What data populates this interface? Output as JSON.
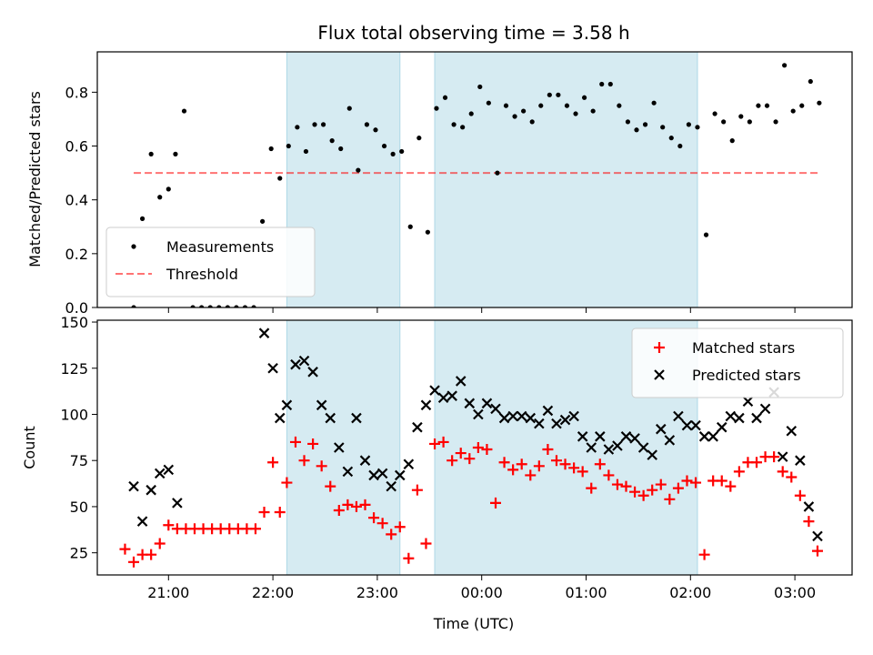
{
  "chart_data": {
    "title": "Flux total observing time = 3.58 h",
    "xlabel": "Time (UTC)",
    "x_ticks": [
      "21:00",
      "22:00",
      "23:00",
      "00:00",
      "01:00",
      "02:00",
      "03:00"
    ],
    "shaded_intervals": [
      [
        "22:08",
        "23:13"
      ],
      [
        "23:33",
        "02:04"
      ]
    ],
    "shade_color": "#add8e6",
    "panels": [
      {
        "type": "scatter",
        "ylabel": "Matched/Predicted stars",
        "ylim": [
          0,
          0.95
        ],
        "y_ticks": [
          "0.0",
          "0.2",
          "0.4",
          "0.6",
          "0.8"
        ],
        "legend_position": "lower-left",
        "threshold": {
          "label": "Threshold",
          "value": 0.5,
          "x_range": [
            "20:40",
            "03:15"
          ],
          "color": "#ff0000"
        },
        "series": [
          {
            "name": "Measurements",
            "marker": "dot",
            "color": "#000000",
            "points": [
              [
                "20:40",
                0.0
              ],
              [
                "20:45",
                0.33
              ],
              [
                "20:50",
                0.57
              ],
              [
                "20:55",
                0.41
              ],
              [
                "21:00",
                0.44
              ],
              [
                "21:04",
                0.57
              ],
              [
                "21:09",
                0.73
              ],
              [
                "21:14",
                0.0
              ],
              [
                "21:19",
                0.0
              ],
              [
                "21:24",
                0.0
              ],
              [
                "21:29",
                0.0
              ],
              [
                "21:34",
                0.0
              ],
              [
                "21:39",
                0.0
              ],
              [
                "21:44",
                0.0
              ],
              [
                "21:49",
                0.0
              ],
              [
                "21:54",
                0.32
              ],
              [
                "21:59",
                0.59
              ],
              [
                "22:04",
                0.48
              ],
              [
                "22:09",
                0.6
              ],
              [
                "22:14",
                0.67
              ],
              [
                "22:19",
                0.58
              ],
              [
                "22:24",
                0.68
              ],
              [
                "22:29",
                0.68
              ],
              [
                "22:34",
                0.62
              ],
              [
                "22:39",
                0.59
              ],
              [
                "22:44",
                0.74
              ],
              [
                "22:49",
                0.51
              ],
              [
                "22:54",
                0.68
              ],
              [
                "22:59",
                0.66
              ],
              [
                "23:04",
                0.6
              ],
              [
                "23:09",
                0.57
              ],
              [
                "23:14",
                0.58
              ],
              [
                "23:19",
                0.3
              ],
              [
                "23:24",
                0.63
              ],
              [
                "23:29",
                0.28
              ],
              [
                "23:34",
                0.74
              ],
              [
                "23:39",
                0.78
              ],
              [
                "23:44",
                0.68
              ],
              [
                "23:49",
                0.67
              ],
              [
                "23:54",
                0.72
              ],
              [
                "23:59",
                0.82
              ],
              [
                "00:04",
                0.76
              ],
              [
                "00:09",
                0.5
              ],
              [
                "00:14",
                0.75
              ],
              [
                "00:19",
                0.71
              ],
              [
                "00:24",
                0.73
              ],
              [
                "00:29",
                0.69
              ],
              [
                "00:34",
                0.75
              ],
              [
                "00:39",
                0.79
              ],
              [
                "00:44",
                0.79
              ],
              [
                "00:49",
                0.75
              ],
              [
                "00:54",
                0.72
              ],
              [
                "00:59",
                0.78
              ],
              [
                "01:04",
                0.73
              ],
              [
                "01:09",
                0.83
              ],
              [
                "01:14",
                0.83
              ],
              [
                "01:19",
                0.75
              ],
              [
                "01:24",
                0.69
              ],
              [
                "01:29",
                0.66
              ],
              [
                "01:34",
                0.68
              ],
              [
                "01:39",
                0.76
              ],
              [
                "01:44",
                0.67
              ],
              [
                "01:49",
                0.63
              ],
              [
                "01:54",
                0.6
              ],
              [
                "01:59",
                0.68
              ],
              [
                "02:04",
                0.67
              ],
              [
                "02:09",
                0.27
              ],
              [
                "02:14",
                0.72
              ],
              [
                "02:19",
                0.69
              ],
              [
                "02:24",
                0.62
              ],
              [
                "02:29",
                0.71
              ],
              [
                "02:34",
                0.69
              ],
              [
                "02:39",
                0.75
              ],
              [
                "02:44",
                0.75
              ],
              [
                "02:49",
                0.69
              ],
              [
                "02:54",
                0.9
              ],
              [
                "02:59",
                0.73
              ],
              [
                "03:04",
                0.75
              ],
              [
                "03:09",
                0.84
              ],
              [
                "03:14",
                0.76
              ]
            ]
          }
        ]
      },
      {
        "type": "scatter",
        "ylabel": "Count",
        "ylim": [
          13,
          151
        ],
        "y_ticks": [
          "25",
          "50",
          "75",
          "100",
          "125",
          "150"
        ],
        "legend_position": "upper-right",
        "series": [
          {
            "name": "Matched stars",
            "marker": "plus",
            "color": "#ff0000",
            "points": [
              [
                "20:35",
                27
              ],
              [
                "20:40",
                20
              ],
              [
                "20:45",
                24
              ],
              [
                "20:50",
                24
              ],
              [
                "20:55",
                30
              ],
              [
                "21:00",
                40
              ],
              [
                "21:05",
                38
              ],
              [
                "21:10",
                38
              ],
              [
                "21:15",
                38
              ],
              [
                "21:20",
                38
              ],
              [
                "21:25",
                38
              ],
              [
                "21:30",
                38
              ],
              [
                "21:35",
                38
              ],
              [
                "21:40",
                38
              ],
              [
                "21:45",
                38
              ],
              [
                "21:50",
                38
              ],
              [
                "21:55",
                47
              ],
              [
                "22:00",
                74
              ],
              [
                "22:04",
                47
              ],
              [
                "22:08",
                63
              ],
              [
                "22:13",
                85
              ],
              [
                "22:18",
                75
              ],
              [
                "22:23",
                84
              ],
              [
                "22:28",
                72
              ],
              [
                "22:33",
                61
              ],
              [
                "22:38",
                48
              ],
              [
                "22:43",
                51
              ],
              [
                "22:48",
                50
              ],
              [
                "22:53",
                51
              ],
              [
                "22:58",
                44
              ],
              [
                "23:03",
                41
              ],
              [
                "23:08",
                35
              ],
              [
                "23:13",
                39
              ],
              [
                "23:18",
                22
              ],
              [
                "23:23",
                59
              ],
              [
                "23:28",
                30
              ],
              [
                "23:33",
                84
              ],
              [
                "23:38",
                85
              ],
              [
                "23:43",
                75
              ],
              [
                "23:48",
                79
              ],
              [
                "23:53",
                76
              ],
              [
                "23:58",
                82
              ],
              [
                "00:03",
                81
              ],
              [
                "00:08",
                52
              ],
              [
                "00:13",
                74
              ],
              [
                "00:18",
                70
              ],
              [
                "00:23",
                73
              ],
              [
                "00:28",
                67
              ],
              [
                "00:33",
                72
              ],
              [
                "00:38",
                81
              ],
              [
                "00:43",
                75
              ],
              [
                "00:48",
                73
              ],
              [
                "00:53",
                71
              ],
              [
                "00:58",
                69
              ],
              [
                "01:03",
                60
              ],
              [
                "01:08",
                73
              ],
              [
                "01:13",
                67
              ],
              [
                "01:18",
                62
              ],
              [
                "01:23",
                61
              ],
              [
                "01:28",
                58
              ],
              [
                "01:33",
                56
              ],
              [
                "01:38",
                59
              ],
              [
                "01:43",
                62
              ],
              [
                "01:48",
                54
              ],
              [
                "01:53",
                60
              ],
              [
                "01:58",
                64
              ],
              [
                "02:03",
                63
              ],
              [
                "02:08",
                24
              ],
              [
                "02:13",
                64
              ],
              [
                "02:18",
                64
              ],
              [
                "02:23",
                61
              ],
              [
                "02:28",
                69
              ],
              [
                "02:33",
                74
              ],
              [
                "02:38",
                74
              ],
              [
                "02:43",
                77
              ],
              [
                "02:48",
                77
              ],
              [
                "02:53",
                69
              ],
              [
                "02:58",
                66
              ],
              [
                "03:03",
                56
              ],
              [
                "03:08",
                42
              ],
              [
                "03:13",
                26
              ]
            ]
          },
          {
            "name": "Predicted stars",
            "marker": "x",
            "color": "#000000",
            "points": [
              [
                "20:40",
                61
              ],
              [
                "20:45",
                42
              ],
              [
                "20:50",
                59
              ],
              [
                "20:55",
                68
              ],
              [
                "21:00",
                70
              ],
              [
                "21:05",
                52
              ],
              [
                "21:55",
                144
              ],
              [
                "22:00",
                125
              ],
              [
                "22:04",
                98
              ],
              [
                "22:08",
                105
              ],
              [
                "22:13",
                127
              ],
              [
                "22:18",
                129
              ],
              [
                "22:23",
                123
              ],
              [
                "22:28",
                105
              ],
              [
                "22:33",
                98
              ],
              [
                "22:38",
                82
              ],
              [
                "22:43",
                69
              ],
              [
                "22:48",
                98
              ],
              [
                "22:53",
                75
              ],
              [
                "22:58",
                67
              ],
              [
                "23:03",
                68
              ],
              [
                "23:08",
                61
              ],
              [
                "23:13",
                67
              ],
              [
                "23:18",
                73
              ],
              [
                "23:23",
                93
              ],
              [
                "23:28",
                105
              ],
              [
                "23:33",
                113
              ],
              [
                "23:38",
                109
              ],
              [
                "23:43",
                110
              ],
              [
                "23:48",
                118
              ],
              [
                "23:53",
                106
              ],
              [
                "23:58",
                100
              ],
              [
                "00:03",
                106
              ],
              [
                "00:08",
                103
              ],
              [
                "00:13",
                98
              ],
              [
                "00:18",
                99
              ],
              [
                "00:23",
                99
              ],
              [
                "00:28",
                98
              ],
              [
                "00:33",
                95
              ],
              [
                "00:38",
                102
              ],
              [
                "00:43",
                95
              ],
              [
                "00:48",
                97
              ],
              [
                "00:53",
                99
              ],
              [
                "00:58",
                88
              ],
              [
                "01:03",
                82
              ],
              [
                "01:08",
                88
              ],
              [
                "01:13",
                81
              ],
              [
                "01:18",
                83
              ],
              [
                "01:23",
                88
              ],
              [
                "01:28",
                87
              ],
              [
                "01:33",
                82
              ],
              [
                "01:38",
                78
              ],
              [
                "01:43",
                92
              ],
              [
                "01:48",
                86
              ],
              [
                "01:53",
                99
              ],
              [
                "01:58",
                94
              ],
              [
                "02:03",
                94
              ],
              [
                "02:08",
                88
              ],
              [
                "02:13",
                88
              ],
              [
                "02:18",
                93
              ],
              [
                "02:23",
                99
              ],
              [
                "02:28",
                98
              ],
              [
                "02:33",
                107
              ],
              [
                "02:38",
                98
              ],
              [
                "02:43",
                103
              ],
              [
                "02:48",
                112
              ],
              [
                "02:53",
                77
              ],
              [
                "02:58",
                91
              ],
              [
                "03:03",
                75
              ],
              [
                "03:08",
                50
              ],
              [
                "03:13",
                34
              ]
            ]
          }
        ]
      }
    ]
  }
}
